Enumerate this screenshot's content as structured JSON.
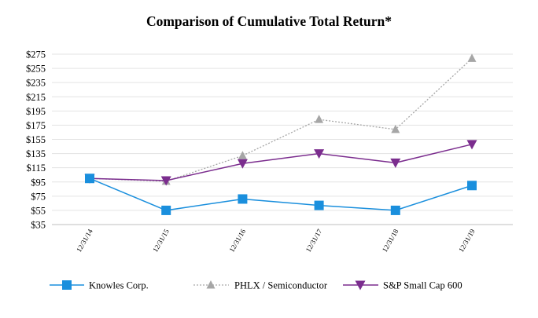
{
  "chart_data": {
    "type": "line",
    "title": "Comparison of Cumulative Total Return*",
    "xlabel": "",
    "ylabel": "",
    "categories": [
      "12/31/14",
      "12/31/15",
      "12/31/16",
      "12/31/17",
      "12/31/18",
      "12/31/19"
    ],
    "y_ticks": [
      35,
      55,
      75,
      95,
      115,
      135,
      155,
      175,
      195,
      215,
      235,
      255,
      275
    ],
    "y_tick_labels": [
      "$35",
      "$55",
      "$75",
      "$95",
      "$115",
      "$135",
      "$155",
      "$175",
      "$195",
      "$215",
      "$235",
      "$255",
      "$275"
    ],
    "ylim": [
      35,
      275
    ],
    "grid": true,
    "legend_position": "bottom",
    "series": [
      {
        "name": "Knowles Corp.",
        "values": [
          100,
          55,
          71,
          62,
          55,
          90
        ],
        "color": "#1a8fdd",
        "marker": "square",
        "line_style": "solid"
      },
      {
        "name": "PHLX / Semiconductor",
        "values": [
          100,
          96,
          132,
          183,
          169,
          269
        ],
        "color": "#a6a6a6",
        "marker": "triangle-up",
        "line_style": "dotted"
      },
      {
        "name": "S&P Small Cap 600",
        "values": [
          100,
          97,
          121,
          135,
          122,
          148
        ],
        "color": "#7b2d8e",
        "marker": "triangle-down",
        "line_style": "solid"
      }
    ]
  }
}
